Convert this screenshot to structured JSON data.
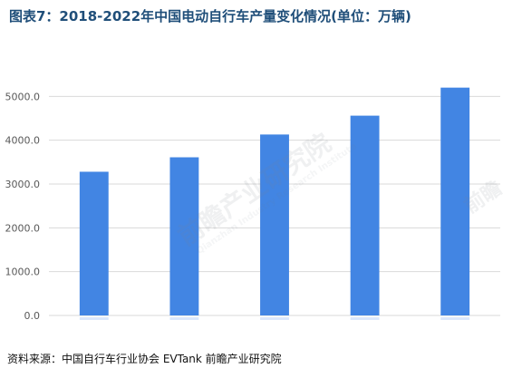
{
  "title": "图表7：2018-2022年中国电动自行车产量变化情况(单位：万辆)",
  "watermark": {
    "text": "前瞻产业研究院",
    "short_text": "前瞻",
    "english": "Qianzhan Industry Research Institute"
  },
  "source": "资料来源：中国自行车行业协会 EVTank 前瞻产业研究院",
  "chart_data": {
    "type": "bar",
    "title": "图表7：2018-2022年中国电动自行车产量变化情况(单位：万辆)",
    "xlabel": "",
    "ylabel": "",
    "categories": [
      "",
      "",
      "",
      "",
      ""
    ],
    "values": [
      3280,
      3610,
      4130,
      4560,
      5200
    ],
    "ylim": [
      0,
      6000
    ],
    "yticks": [
      0,
      1000,
      2000,
      3000,
      4000,
      5000
    ],
    "ytick_labels": [
      "0.0",
      "1000.0",
      "2000.0",
      "3000.0",
      "4000.0",
      "5000.0"
    ],
    "grid": "horizontal",
    "legend": "none",
    "bar_color": "#4285e3",
    "grid_color": "#d9d9d9",
    "axis_text_color": "#595959"
  }
}
